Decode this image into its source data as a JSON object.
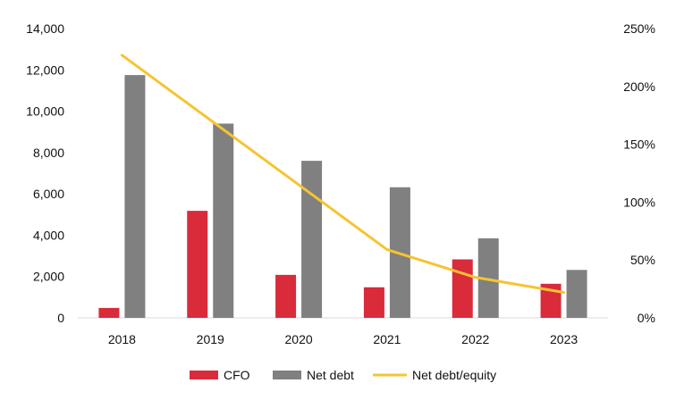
{
  "chart_data": {
    "type": "bar",
    "categories": [
      "2018",
      "2019",
      "2020",
      "2021",
      "2022",
      "2023"
    ],
    "series": [
      {
        "name": "CFO",
        "kind": "bar",
        "axis": "left",
        "color": "#d92b3a",
        "values": [
          480,
          5180,
          2080,
          1480,
          2830,
          1650
        ]
      },
      {
        "name": "Net debt",
        "kind": "bar",
        "axis": "left",
        "color": "#808080",
        "values": [
          11750,
          9400,
          7600,
          6320,
          3850,
          2320
        ]
      },
      {
        "name": "Net debt/equity",
        "kind": "line",
        "axis": "right",
        "color": "#f5c432",
        "values": [
          227,
          171,
          115,
          59,
          35,
          22
        ]
      }
    ],
    "left_axis": {
      "min": 0,
      "max": 14000,
      "step": 2000,
      "tick_labels": [
        "0",
        "2,000",
        "4,000",
        "6,000",
        "8,000",
        "10,000",
        "12,000",
        "14,000"
      ]
    },
    "right_axis": {
      "min": 0,
      "max": 250,
      "step": 50,
      "tick_labels": [
        "0%",
        "50%",
        "100%",
        "150%",
        "200%",
        "250%"
      ]
    },
    "legend": {
      "position": "bottom",
      "items": [
        "CFO",
        "Net debt",
        "Net debt/equity"
      ]
    },
    "grid": false
  }
}
